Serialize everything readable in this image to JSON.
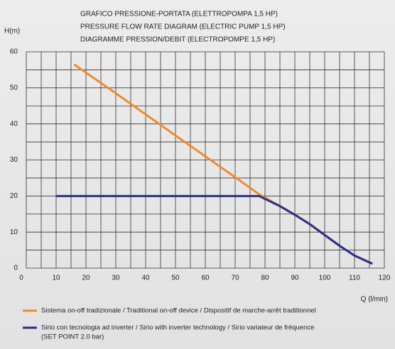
{
  "chart_data": {
    "type": "line",
    "title": [
      "GRAFICO PRESSIONE-PORTATA (ELETTROPOMPA 1,5 HP)",
      "PRESSURE FLOW RATE DIAGRAM (ELECTRIC PUMP 1,5 HP)",
      "DIAGRAMME PRESSION/DEBIT (ELECTROPOMPE 1,5 HP)"
    ],
    "y_label": "H(m)",
    "x_label": "Q (l/min)",
    "xlim": [
      0,
      120
    ],
    "ylim": [
      0,
      60
    ],
    "xticks": [
      0,
      10,
      20,
      30,
      40,
      50,
      60,
      70,
      80,
      90,
      100,
      110,
      120
    ],
    "yticks": [
      0,
      10,
      20,
      30,
      40,
      50,
      60
    ],
    "xgrid": [
      0,
      5,
      10,
      15,
      20,
      25,
      30,
      35,
      40,
      45,
      50,
      55,
      60,
      65,
      70,
      75,
      80,
      85,
      90,
      95,
      100,
      105,
      110,
      115,
      120
    ],
    "ygrid": [
      0,
      5,
      10,
      15,
      20,
      25,
      30,
      35,
      40,
      45,
      50,
      55,
      60
    ],
    "grid": true,
    "legend_position": "bottom",
    "series": [
      {
        "name": "Sistema on-off tradizionale / Traditional on-off device / Dispositif de marche-arrêt traditionnel",
        "color": "#f08a2e",
        "x": [
          16,
          30,
          50,
          70,
          78,
          85,
          90,
          95,
          100,
          105,
          110,
          116
        ],
        "values": [
          56.5,
          48.5,
          36.8,
          25.2,
          20.5,
          17.2,
          14.8,
          12.2,
          9.2,
          6.2,
          3.5,
          1.2
        ]
      },
      {
        "name": "Sirio con tecnologia ad inverter / Sirio with inverter technology / Sirio variateur de fréquence",
        "color": "#2b2f86",
        "note": "(SET POINT 2.0 bar)",
        "x": [
          10,
          78,
          85,
          90,
          95,
          100,
          105,
          110,
          116
        ],
        "values": [
          20,
          20,
          17.2,
          14.8,
          12.2,
          9.2,
          6.2,
          3.5,
          1.2
        ]
      }
    ]
  }
}
